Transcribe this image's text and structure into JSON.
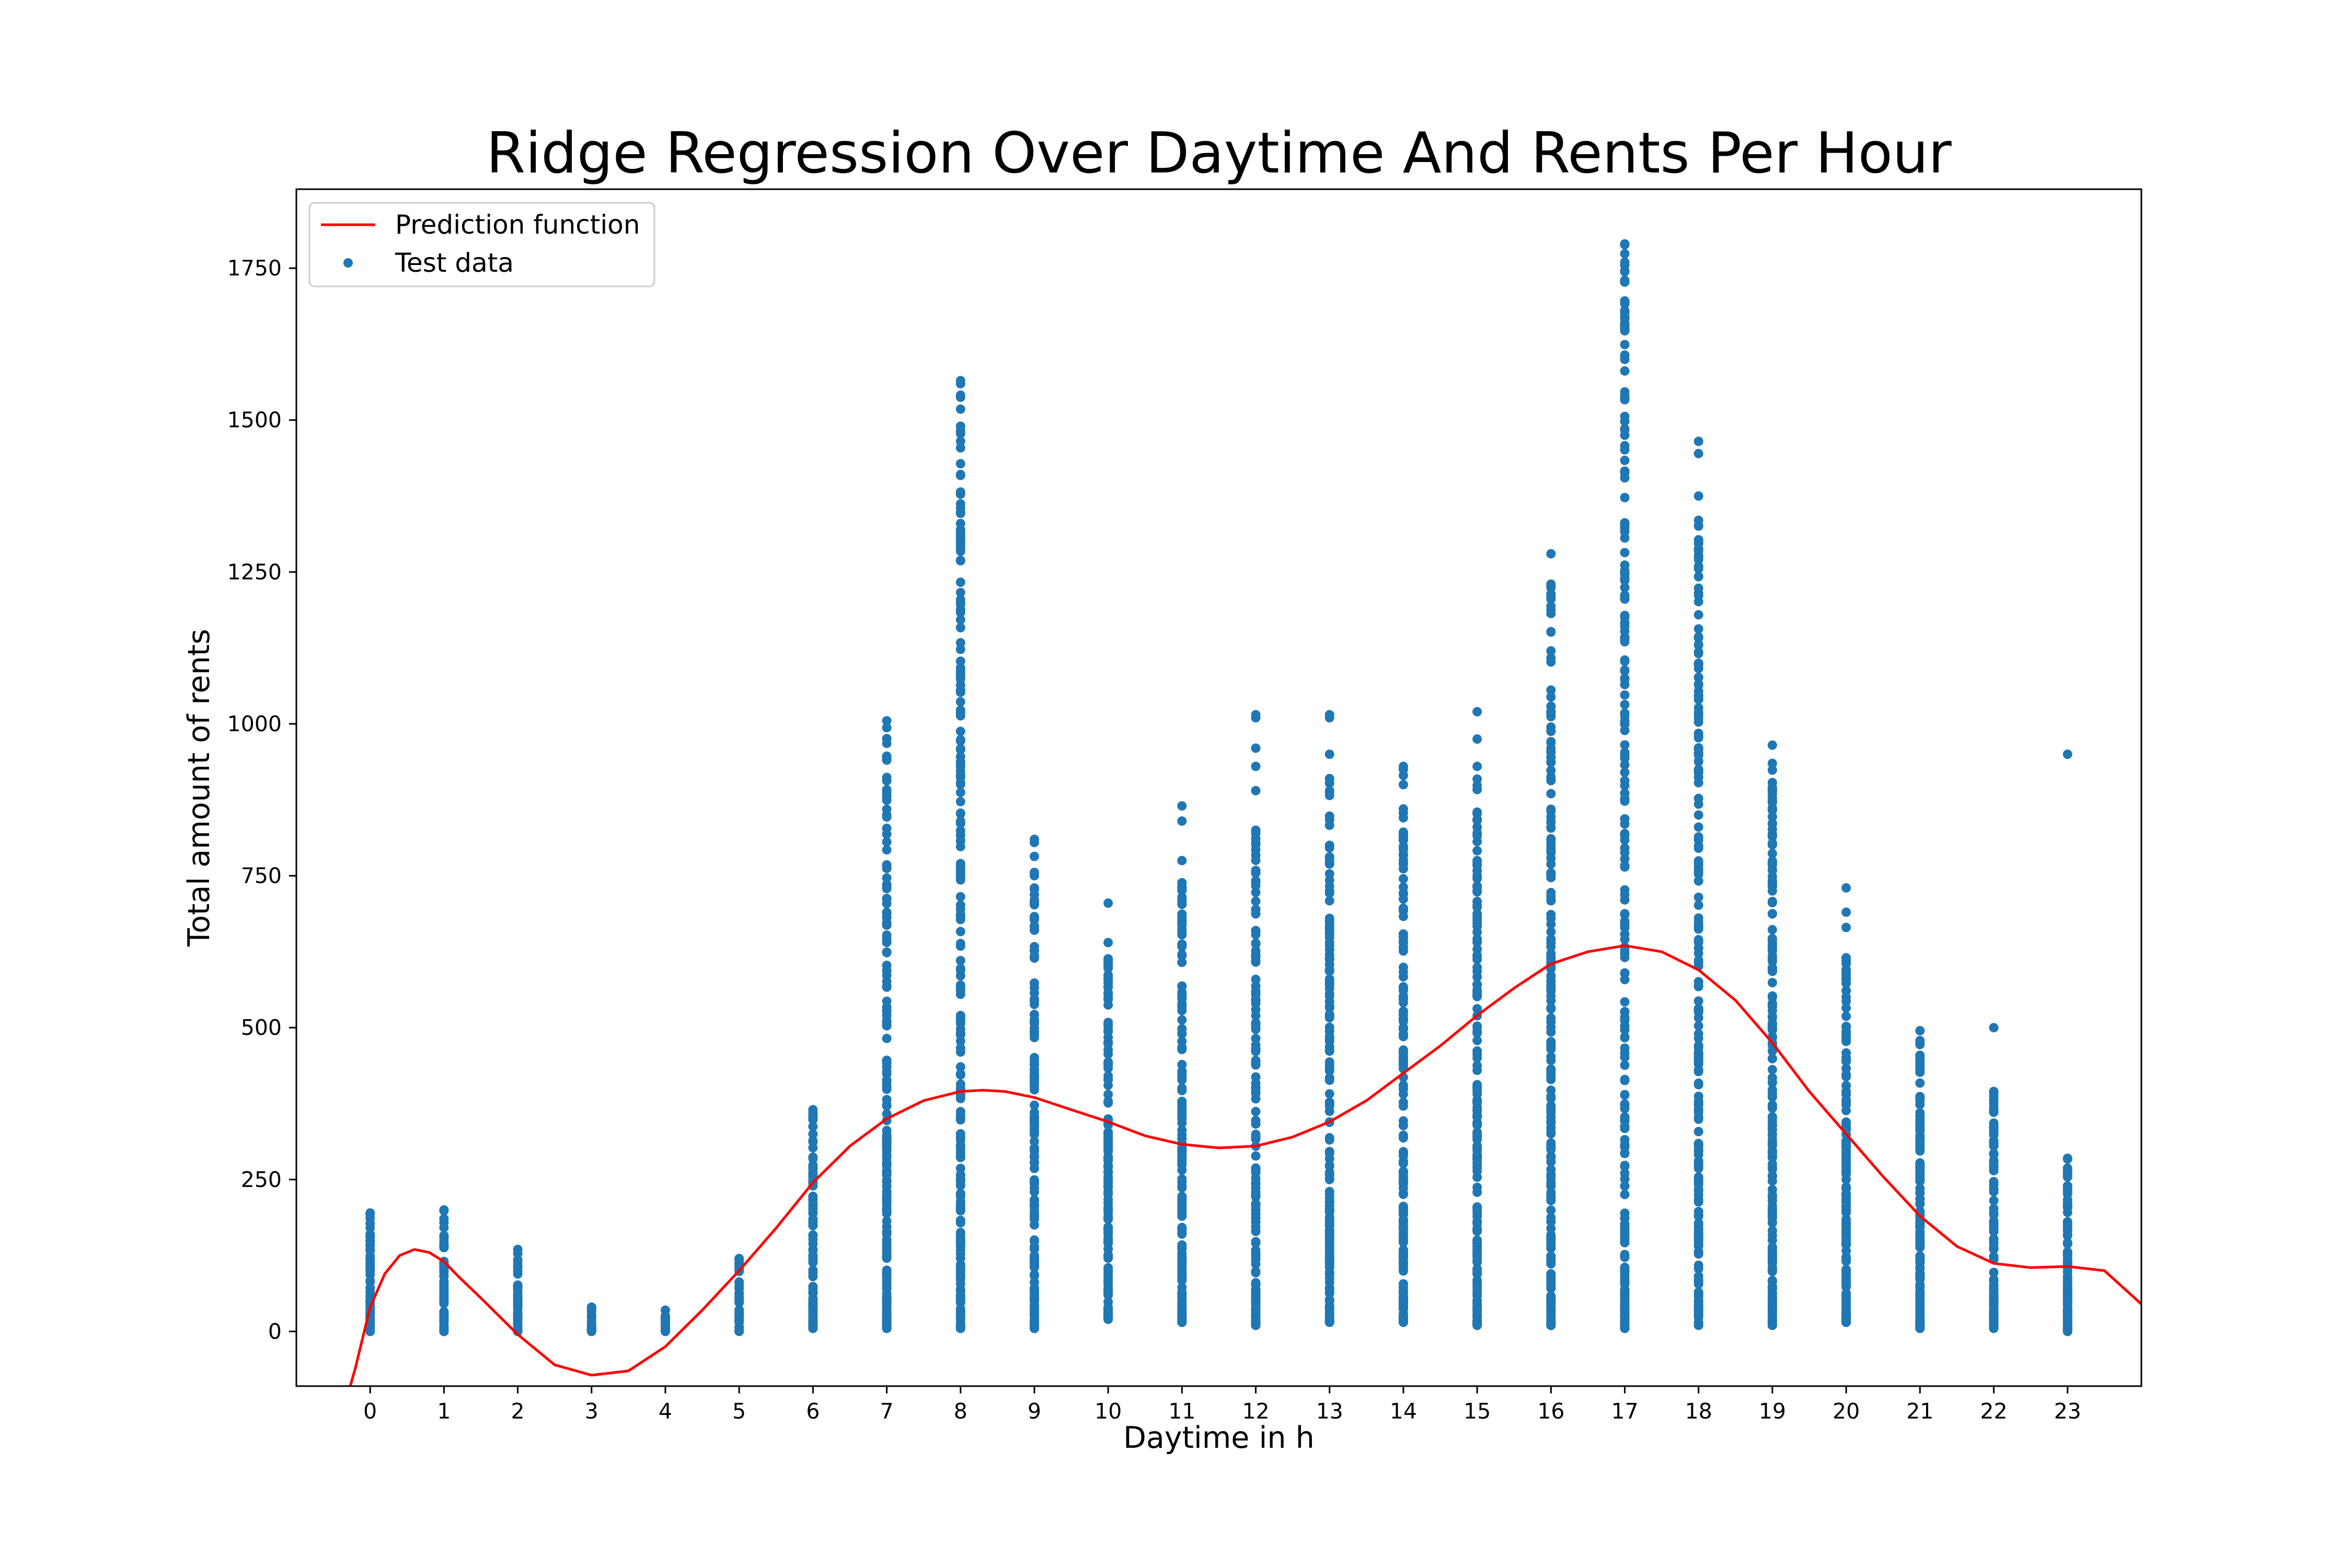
{
  "chart_data": {
    "type": "scatter",
    "title": "Ridge Regression Over Daytime And Rents Per Hour",
    "xlabel": "Daytime in h",
    "ylabel": "Total amount of rents",
    "xlim": [
      -1,
      24
    ],
    "ylim": [
      -90,
      1880
    ],
    "x_ticks": [
      0,
      1,
      2,
      3,
      4,
      5,
      6,
      7,
      8,
      9,
      10,
      11,
      12,
      13,
      14,
      15,
      16,
      17,
      18,
      19,
      20,
      21,
      22,
      23
    ],
    "y_ticks": [
      0,
      250,
      500,
      750,
      1000,
      1250,
      1500,
      1750
    ],
    "grid": false,
    "legend": {
      "placement": "top-left",
      "entries": [
        "Prediction function",
        "Test data"
      ]
    },
    "colors": {
      "prediction": "#ff0000",
      "test_data": "#1f77b4"
    },
    "series": [
      {
        "name": "Test data",
        "kind": "scatter",
        "hour_ranges": [
          {
            "x": 0,
            "min": 0,
            "max": 195,
            "count": 60,
            "outliers": []
          },
          {
            "x": 1,
            "min": 0,
            "max": 200,
            "count": 60,
            "outliers": []
          },
          {
            "x": 2,
            "min": 0,
            "max": 135,
            "count": 40,
            "outliers": []
          },
          {
            "x": 3,
            "min": 0,
            "max": 40,
            "count": 20,
            "outliers": []
          },
          {
            "x": 4,
            "min": 0,
            "max": 35,
            "count": 20,
            "outliers": []
          },
          {
            "x": 5,
            "min": 0,
            "max": 120,
            "count": 40,
            "outliers": []
          },
          {
            "x": 6,
            "min": 5,
            "max": 365,
            "count": 90,
            "outliers": []
          },
          {
            "x": 7,
            "min": 5,
            "max": 1005,
            "count": 180,
            "outliers": []
          },
          {
            "x": 8,
            "min": 5,
            "max": 1565,
            "count": 220,
            "outliers": []
          },
          {
            "x": 9,
            "min": 5,
            "max": 810,
            "count": 170,
            "outliers": []
          },
          {
            "x": 10,
            "min": 20,
            "max": 640,
            "count": 150,
            "outliers": [
              705
            ]
          },
          {
            "x": 11,
            "min": 15,
            "max": 775,
            "count": 160,
            "outliers": [
              840,
              865
            ]
          },
          {
            "x": 12,
            "min": 10,
            "max": 825,
            "count": 160,
            "outliers": [
              890,
              930,
              960,
              1010,
              1015
            ]
          },
          {
            "x": 13,
            "min": 15,
            "max": 910,
            "count": 170,
            "outliers": [
              950,
              1010,
              1015
            ]
          },
          {
            "x": 14,
            "min": 15,
            "max": 860,
            "count": 170,
            "outliers": [
              900,
              915,
              925,
              930
            ]
          },
          {
            "x": 15,
            "min": 10,
            "max": 930,
            "count": 180,
            "outliers": [
              975,
              1020
            ]
          },
          {
            "x": 16,
            "min": 10,
            "max": 1230,
            "count": 210,
            "outliers": [
              1280
            ]
          },
          {
            "x": 17,
            "min": 5,
            "max": 1790,
            "count": 240,
            "outliers": []
          },
          {
            "x": 18,
            "min": 10,
            "max": 1335,
            "count": 220,
            "outliers": [
              1375,
              1445,
              1465
            ]
          },
          {
            "x": 19,
            "min": 10,
            "max": 935,
            "count": 190,
            "outliers": [
              965
            ]
          },
          {
            "x": 20,
            "min": 15,
            "max": 615,
            "count": 160,
            "outliers": [
              665,
              690,
              730
            ]
          },
          {
            "x": 21,
            "min": 5,
            "max": 495,
            "count": 140,
            "outliers": []
          },
          {
            "x": 22,
            "min": 5,
            "max": 395,
            "count": 120,
            "outliers": [
              500
            ]
          },
          {
            "x": 23,
            "min": 0,
            "max": 285,
            "count": 100,
            "outliers": [
              950
            ]
          }
        ]
      },
      {
        "name": "Prediction function",
        "kind": "line",
        "x": [
          -0.27,
          -0.2,
          -0.1,
          0.0,
          0.2,
          0.4,
          0.6,
          0.8,
          1.0,
          1.2,
          1.5,
          2.0,
          2.5,
          3.0,
          3.5,
          4.0,
          4.5,
          5.0,
          5.5,
          6.0,
          6.5,
          7.0,
          7.5,
          8.0,
          8.3,
          8.6,
          9.0,
          9.5,
          10.0,
          10.5,
          11.0,
          11.5,
          12.0,
          12.5,
          13.0,
          13.5,
          14.0,
          14.5,
          15.0,
          15.5,
          16.0,
          16.5,
          17.0,
          17.5,
          18.0,
          18.5,
          19.0,
          19.5,
          20.0,
          20.5,
          21.0,
          21.5,
          22.0,
          22.5,
          23.0,
          23.5,
          24.0
        ],
        "y": [
          -90,
          -60,
          -10,
          40,
          95,
          125,
          135,
          130,
          115,
          90,
          55,
          -5,
          -55,
          -72,
          -65,
          -25,
          35,
          100,
          170,
          245,
          305,
          350,
          380,
          395,
          397,
          395,
          385,
          365,
          345,
          322,
          308,
          302,
          305,
          320,
          345,
          380,
          425,
          470,
          520,
          565,
          605,
          625,
          635,
          625,
          595,
          545,
          475,
          395,
          325,
          255,
          190,
          140,
          112,
          105,
          107,
          100,
          45
        ]
      }
    ]
  }
}
